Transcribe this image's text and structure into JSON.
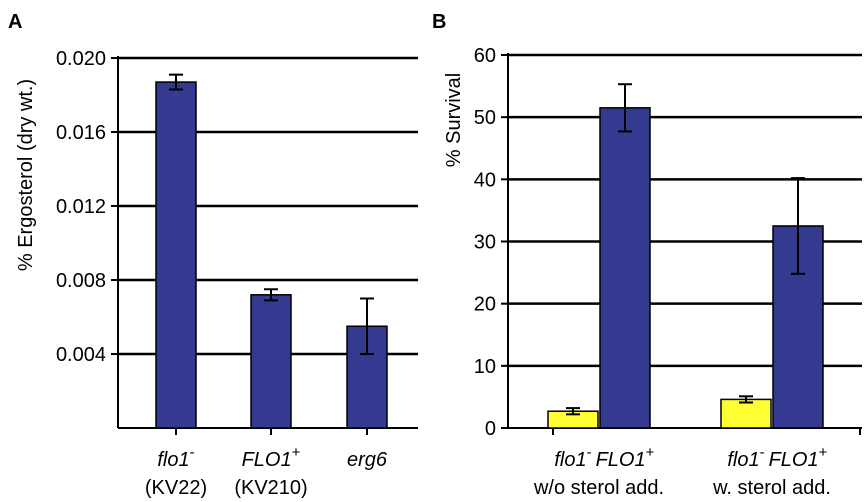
{
  "chart_data": [
    {
      "panel": "A",
      "type": "bar",
      "ylabel": "% Ergosterol (dry wt.)",
      "ylim": [
        0,
        0.02
      ],
      "yticks": [
        "0.004",
        "0.008",
        "0.012",
        "0.016",
        "0.020"
      ],
      "grid": true,
      "categories": [
        {
          "name": "flo1",
          "sup": "-",
          "sub": "(KV22)"
        },
        {
          "name": "FLO1",
          "sup": "+",
          "sub": "(KV210)"
        },
        {
          "name": "erg6",
          "sup": "",
          "sub": ""
        }
      ],
      "values": [
        0.0187,
        0.0072,
        0.0055
      ],
      "errors": [
        0.0004,
        0.0003,
        0.0015
      ],
      "colors": [
        "#333a8f",
        "#333a8f",
        "#333a8f"
      ]
    },
    {
      "panel": "B",
      "type": "bar",
      "ylabel": "% Survival",
      "ylim": [
        0,
        60
      ],
      "yticks": [
        "0",
        "10",
        "20",
        "30",
        "40",
        "50",
        "60"
      ],
      "grid": true,
      "groups": [
        {
          "label": "w/o sterol add.",
          "bars": [
            {
              "name": "flo1",
              "sup": "-",
              "value": 2.7,
              "error": 0.5,
              "color": "#ffff33"
            },
            {
              "name": "FLO1",
              "sup": "+",
              "value": 51.5,
              "error": 3.8,
              "color": "#333a8f"
            }
          ]
        },
        {
          "label": "w. sterol add.",
          "bars": [
            {
              "name": "flo1",
              "sup": "-",
              "value": 4.6,
              "error": 0.5,
              "color": "#ffff33"
            },
            {
              "name": "FLO1",
              "sup": "+",
              "value": 32.5,
              "error": 7.7,
              "color": "#333a8f"
            }
          ]
        }
      ]
    }
  ]
}
